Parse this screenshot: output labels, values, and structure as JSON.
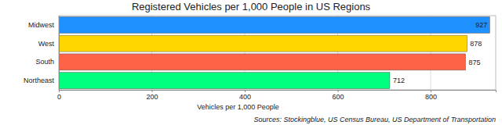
{
  "chart_data": {
    "type": "bar",
    "orientation": "horizontal",
    "title": "Registered Vehicles per 1,000 People in US Regions",
    "xlabel": "Vehicles per 1,000 People",
    "annotation": "Sources: Stockingblue, US Census Bureau, US Department of Transportation",
    "categories": [
      "Midwest",
      "West",
      "South",
      "Northeast"
    ],
    "values": [
      927,
      878,
      875,
      712
    ],
    "colors": [
      "#1e90ff",
      "#ffd700",
      "#ff6347",
      "#00ff7f"
    ],
    "xlim": [
      0,
      940
    ],
    "xticks": [
      0,
      200,
      400,
      600,
      800
    ],
    "grid": true,
    "data_labels": true
  }
}
